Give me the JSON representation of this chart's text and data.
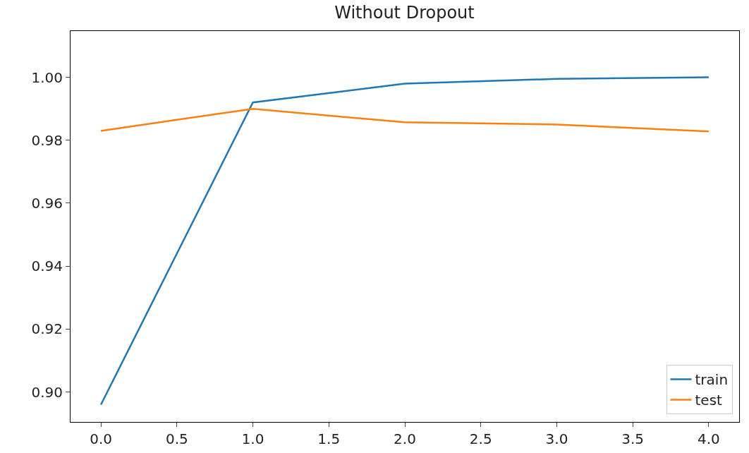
{
  "chart_data": {
    "type": "line",
    "title": "Without Dropout",
    "x": [
      0,
      1,
      2,
      3,
      4
    ],
    "series": [
      {
        "name": "train",
        "color": "#1f77b4",
        "values": [
          0.896,
          0.992,
          0.998,
          0.9995,
          1.0
        ]
      },
      {
        "name": "test",
        "color": "#ff7f0e",
        "values": [
          0.983,
          0.99,
          0.9857,
          0.985,
          0.9828
        ]
      }
    ],
    "xlim": [
      -0.2,
      4.2
    ],
    "xticks": [
      {
        "value": 0,
        "label": "0.0"
      },
      {
        "value": 0.5,
        "label": "0.5"
      },
      {
        "value": 1,
        "label": "1.0"
      },
      {
        "value": 1.5,
        "label": "1.5"
      },
      {
        "value": 2,
        "label": "2.0"
      },
      {
        "value": 2.5,
        "label": "2.5"
      },
      {
        "value": 3,
        "label": "3.0"
      },
      {
        "value": 3.5,
        "label": "3.5"
      },
      {
        "value": 4,
        "label": "4.0"
      }
    ],
    "ylim": [
      0.8905,
      1.0147
    ],
    "yticks": [
      {
        "value": 0.9,
        "label": "0.90"
      },
      {
        "value": 0.92,
        "label": "0.92"
      },
      {
        "value": 0.94,
        "label": "0.94"
      },
      {
        "value": 0.96,
        "label": "0.96"
      },
      {
        "value": 0.98,
        "label": "0.98"
      },
      {
        "value": 1.0,
        "label": "1.00"
      }
    ],
    "grid": false,
    "legend": "bottom right",
    "marker": "none",
    "line_style": "solid"
  }
}
